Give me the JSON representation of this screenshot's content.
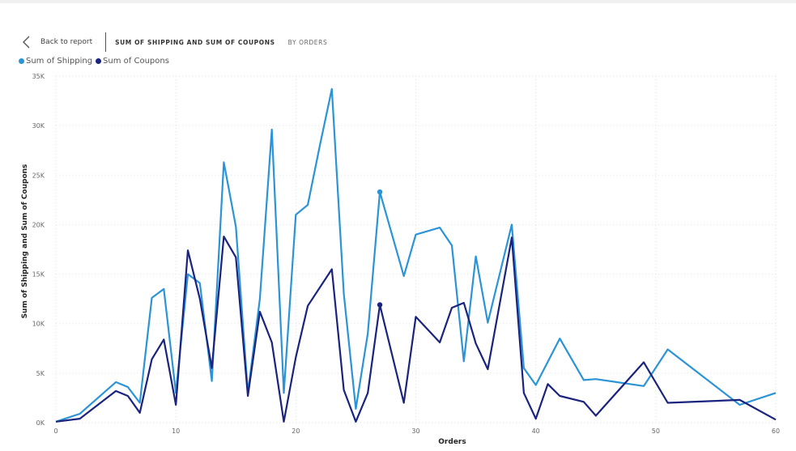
{
  "header": {
    "back_label": "Back to report",
    "title": "SUM OF SHIPPING AND SUM OF COUPONS",
    "subtitle": "BY ORDERS"
  },
  "chart_data": {
    "type": "line",
    "xlabel": "Orders",
    "ylabel": "Sum of Shipping and Sum of Coupons",
    "xlim": [
      0,
      60
    ],
    "ylim": [
      0,
      35000
    ],
    "xticks": [
      "0",
      "10",
      "20",
      "30",
      "40",
      "50",
      "60"
    ],
    "yticks": [
      "0K",
      "5K",
      "10K",
      "15K",
      "20K",
      "25K",
      "30K",
      "35K"
    ],
    "grid": "dotted",
    "legend_position": "top-left",
    "series": [
      {
        "name": "Sum of Shipping",
        "color": "#2b94d6",
        "x": [
          0,
          2,
          5,
          6,
          7,
          8,
          9,
          10,
          11,
          12,
          13,
          14,
          15,
          16,
          17,
          18,
          19,
          20,
          21,
          22,
          23,
          24,
          25,
          26,
          27,
          29,
          30,
          32,
          33,
          34,
          35,
          36,
          38,
          39,
          40,
          42,
          44,
          45,
          49,
          51,
          57,
          60
        ],
        "y": [
          100,
          900,
          4100,
          3600,
          2000,
          12600,
          13500,
          3000,
          15000,
          14100,
          4200,
          26300,
          19800,
          3000,
          12500,
          29600,
          3000,
          21000,
          22000,
          28000,
          33700,
          13000,
          1400,
          9000,
          23300,
          14800,
          19000,
          19700,
          17900,
          6200,
          16800,
          10100,
          20000,
          5500,
          3800,
          8500,
          4300,
          4400,
          3700,
          7400,
          1800,
          3000
        ]
      },
      {
        "name": "Sum of Coupons",
        "color": "#1a237e",
        "x": [
          0,
          2,
          5,
          6,
          7,
          8,
          9,
          10,
          11,
          12,
          13,
          14,
          15,
          16,
          17,
          18,
          19,
          20,
          21,
          23,
          24,
          25,
          26,
          27,
          29,
          30,
          32,
          33,
          34,
          35,
          36,
          38,
          39,
          40,
          41,
          42,
          44,
          45,
          49,
          51,
          57,
          60
        ],
        "y": [
          100,
          400,
          3200,
          2700,
          1000,
          6400,
          8400,
          1800,
          17400,
          12500,
          5500,
          18800,
          16700,
          2700,
          11200,
          8100,
          100,
          6600,
          11800,
          15500,
          3300,
          100,
          3000,
          11900,
          2000,
          10700,
          8100,
          11600,
          12100,
          8000,
          5400,
          18700,
          3000,
          400,
          3900,
          2700,
          2100,
          700,
          6100,
          2000,
          2300,
          300
        ]
      }
    ],
    "highlight_points": [
      {
        "series": "Sum of Shipping",
        "x": 27,
        "y": 23300
      },
      {
        "series": "Sum of Coupons",
        "x": 27,
        "y": 11900
      }
    ]
  }
}
